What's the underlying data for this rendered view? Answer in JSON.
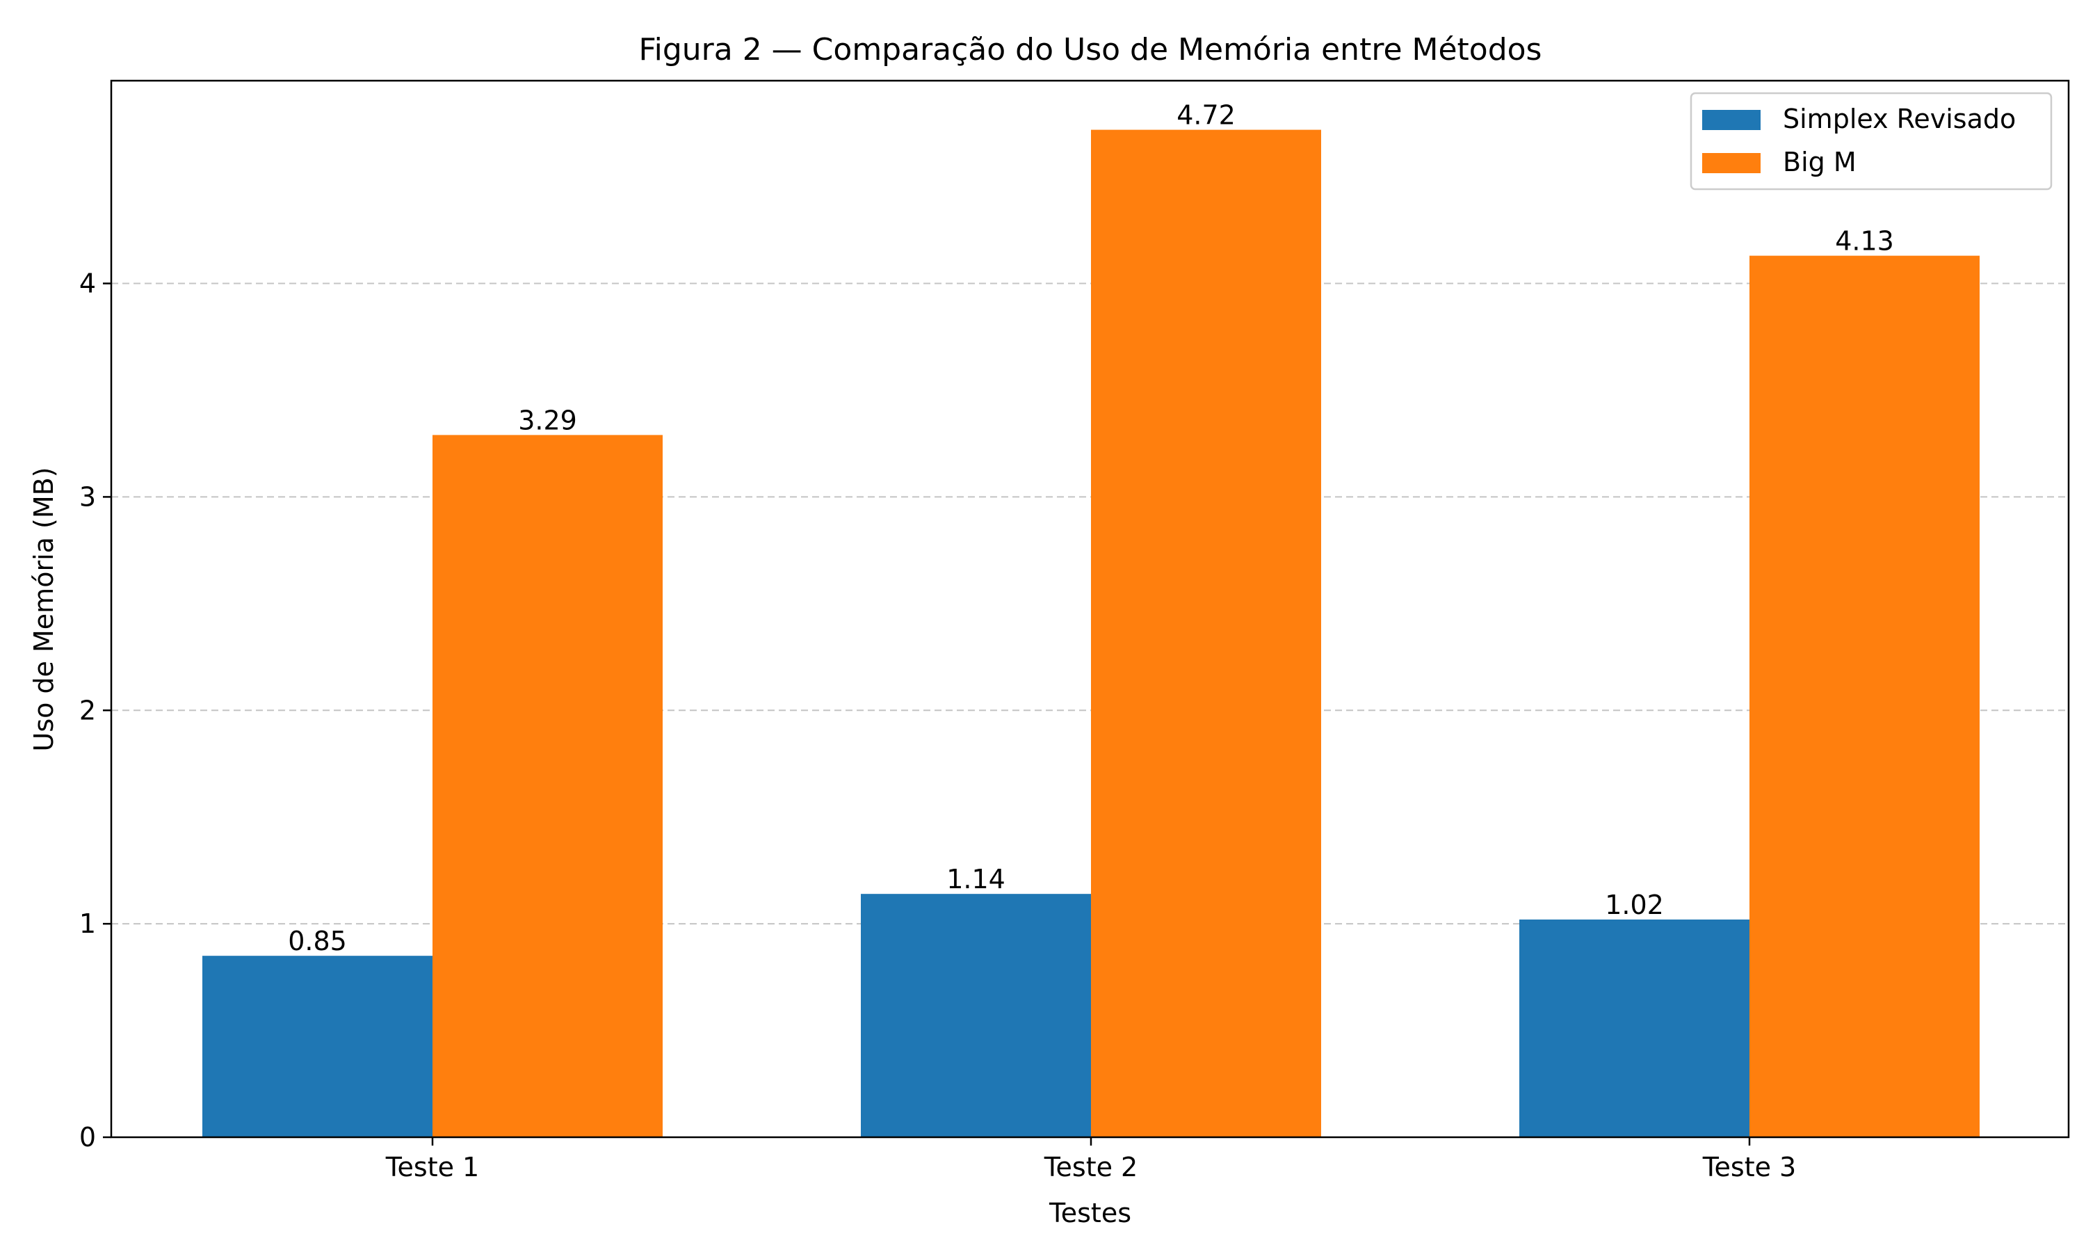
{
  "chart_data": {
    "type": "bar",
    "title": "Figura 2 — Comparação do Uso de Memória entre Métodos",
    "xlabel": "Testes",
    "ylabel": "Uso de Memória (MB)",
    "categories": [
      "Teste 1",
      "Teste 2",
      "Teste 3"
    ],
    "series": [
      {
        "name": "Simplex Revisado",
        "values": [
          0.85,
          1.14,
          1.02
        ],
        "color": "#1f77b4"
      },
      {
        "name": "Big M",
        "values": [
          3.29,
          4.72,
          4.13
        ],
        "color": "#ff7f0e"
      }
    ],
    "data_labels": [
      [
        "0.85",
        "1.14",
        "1.02"
      ],
      [
        "3.29",
        "4.72",
        "4.13"
      ]
    ],
    "ylim": [
      0,
      4.95
    ],
    "yticks": [
      0,
      1,
      2,
      3,
      4
    ],
    "ytick_labels": [
      "0",
      "1",
      "2",
      "3",
      "4"
    ],
    "grid": "y-dashed",
    "legend": "top-right"
  }
}
